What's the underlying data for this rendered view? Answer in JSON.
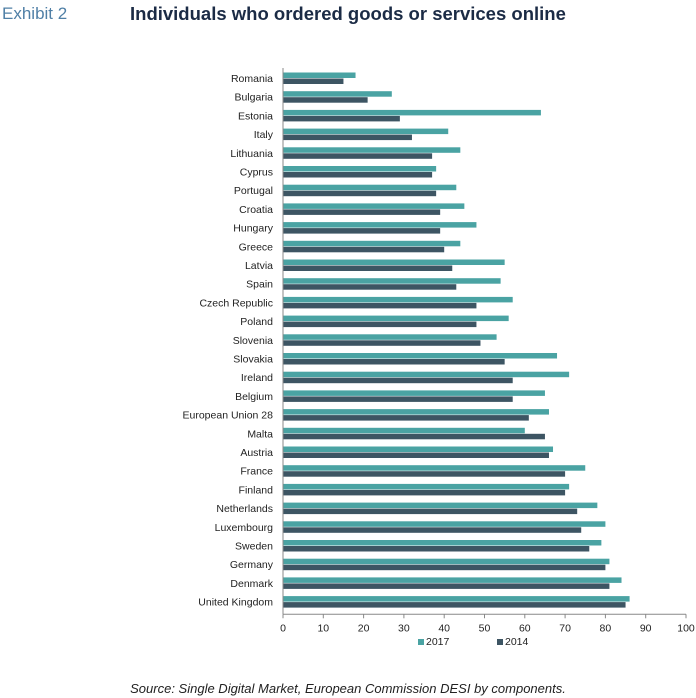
{
  "header": {
    "exhibit": "Exhibit 2",
    "title": "Individuals who ordered goods or services online"
  },
  "chart_data": {
    "type": "bar",
    "orientation": "horizontal",
    "title": "Individuals who ordered goods or services online",
    "xlim": [
      0,
      100
    ],
    "xticks": [
      0,
      10,
      20,
      30,
      40,
      50,
      60,
      70,
      80,
      90,
      100
    ],
    "grid": false,
    "legend_position": "bottom",
    "categories": [
      "Romania",
      "Bulgaria",
      "Estonia",
      "Italy",
      "Lithuania",
      "Cyprus",
      "Portugal",
      "Croatia",
      "Hungary",
      "Greece",
      "Latvia",
      "Spain",
      "Czech Republic",
      "Poland",
      "Slovenia",
      "Slovakia",
      "Ireland",
      "Belgium",
      "European Union 28",
      "Malta",
      "Austria",
      "France",
      "Finland",
      "Netherlands",
      "Luxembourg",
      "Sweden",
      "Germany",
      "Denmark",
      "United Kingdom"
    ],
    "series": [
      {
        "name": "2017",
        "color": "#4aa3a3",
        "values": [
          18,
          27,
          64,
          41,
          44,
          38,
          43,
          45,
          48,
          44,
          55,
          54,
          57,
          56,
          53,
          68,
          71,
          65,
          66,
          60,
          67,
          75,
          71,
          78,
          80,
          79,
          81,
          84,
          86
        ]
      },
      {
        "name": "2014",
        "color": "#3d5563",
        "values": [
          15,
          21,
          29,
          32,
          37,
          37,
          38,
          39,
          39,
          40,
          42,
          43,
          48,
          48,
          49,
          55,
          57,
          57,
          61,
          65,
          66,
          70,
          70,
          73,
          74,
          76,
          80,
          81,
          85
        ]
      }
    ]
  },
  "footer": {
    "source": "Source: Single Digital Market, European Commission DESI by components."
  }
}
